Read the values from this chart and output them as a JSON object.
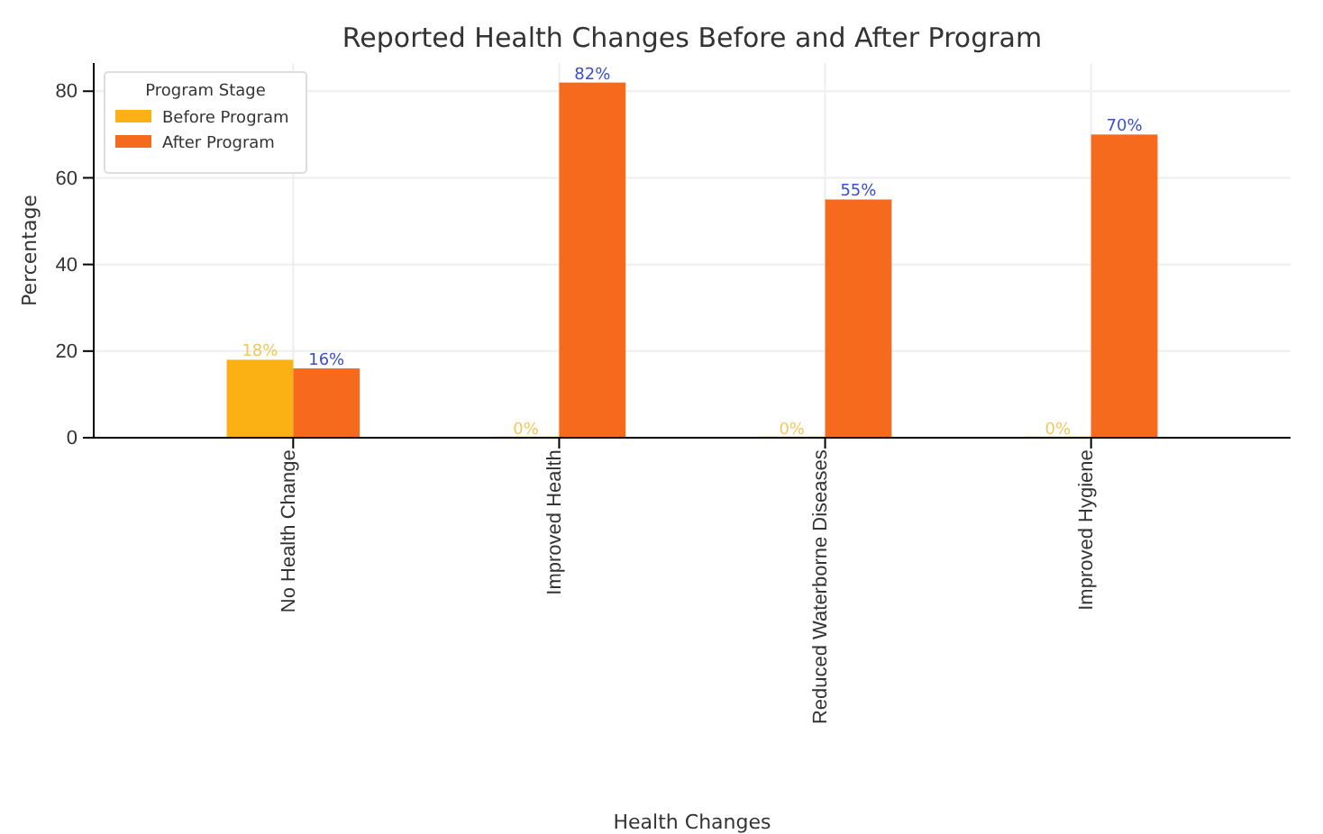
{
  "chart_data": {
    "type": "bar",
    "title": "Reported Health Changes Before and After Program",
    "xlabel": "Health Changes",
    "ylabel": "Percentage",
    "legend_title": "Program Stage",
    "categories": [
      "No Health Change",
      "Improved Health",
      "Reduced Waterborne Diseases",
      "Improved Hygiene"
    ],
    "series": [
      {
        "name": "Before Program",
        "color": "#fbb114",
        "values": [
          18,
          0,
          0,
          0
        ],
        "value_labels": [
          "18%",
          "0%",
          "0%",
          "0%"
        ]
      },
      {
        "name": "After Program",
        "color": "#f66a1e",
        "values": [
          16,
          82,
          55,
          70
        ],
        "value_labels": [
          "16%",
          "82%",
          "55%",
          "70%"
        ]
      }
    ],
    "ylim": [
      0,
      86.5
    ],
    "yticks": [
      0,
      20,
      40,
      60,
      80
    ],
    "grid": true,
    "legend": "top left"
  }
}
